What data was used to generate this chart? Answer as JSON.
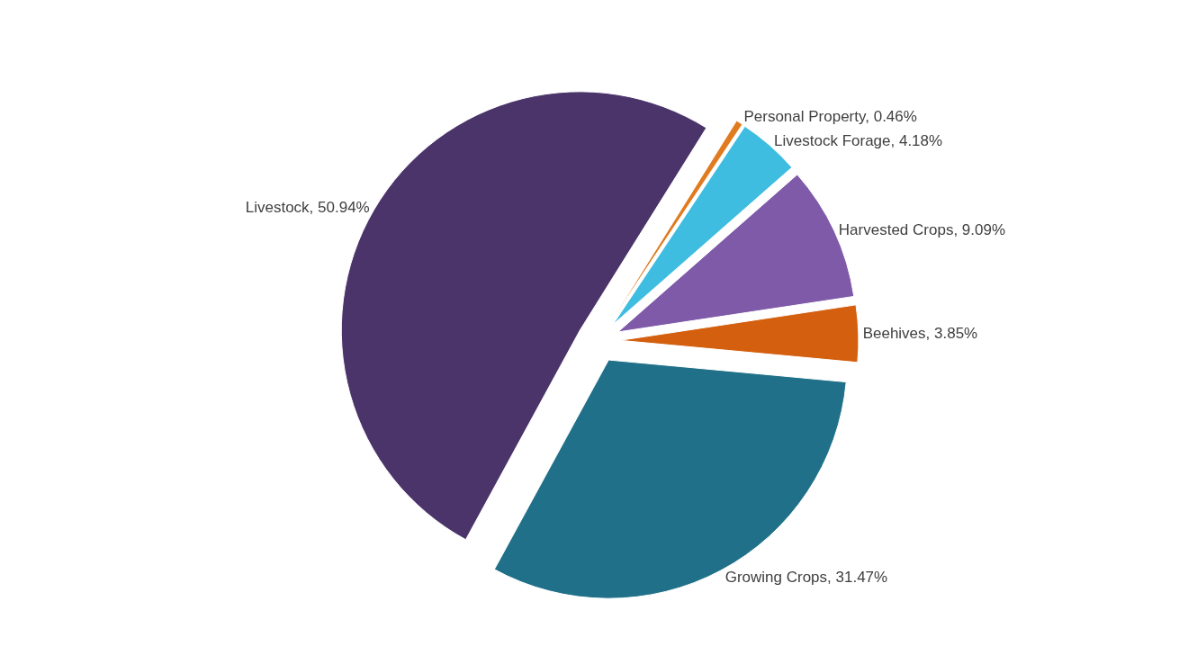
{
  "chart_data": {
    "type": "pie",
    "categories": [
      "Personal Property",
      "Livestock Forage",
      "Harvested Crops",
      "Beehives",
      "Growing Crops",
      "Livestock"
    ],
    "values": [
      0.46,
      4.18,
      9.09,
      3.85,
      31.47,
      50.94
    ],
    "colors": [
      "#e07b20",
      "#3fbde0",
      "#7e5aa8",
      "#d45f0e",
      "#1f7088",
      "#4b3469"
    ],
    "value_labels": [
      "0.46%",
      "4.18%",
      "9.09%",
      "3.85%",
      "31.47%",
      "50.94%"
    ],
    "legend": false
  }
}
